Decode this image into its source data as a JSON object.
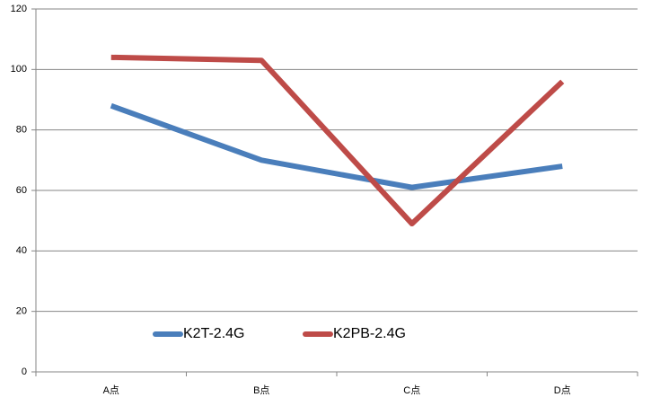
{
  "chart_data": {
    "type": "line",
    "categories": [
      "A点",
      "B点",
      "C点",
      "D点"
    ],
    "series": [
      {
        "name": "K2T-2.4G",
        "color": "#4a7ebb",
        "values": [
          88,
          70,
          61,
          68
        ]
      },
      {
        "name": "K2PB-2.4G",
        "color": "#be4b48",
        "values": [
          104,
          103,
          49,
          96
        ]
      }
    ],
    "ylim": [
      0,
      120
    ],
    "yticks": [
      0,
      20,
      40,
      60,
      80,
      100,
      120
    ],
    "grid": true,
    "legend": "bottom-left"
  }
}
